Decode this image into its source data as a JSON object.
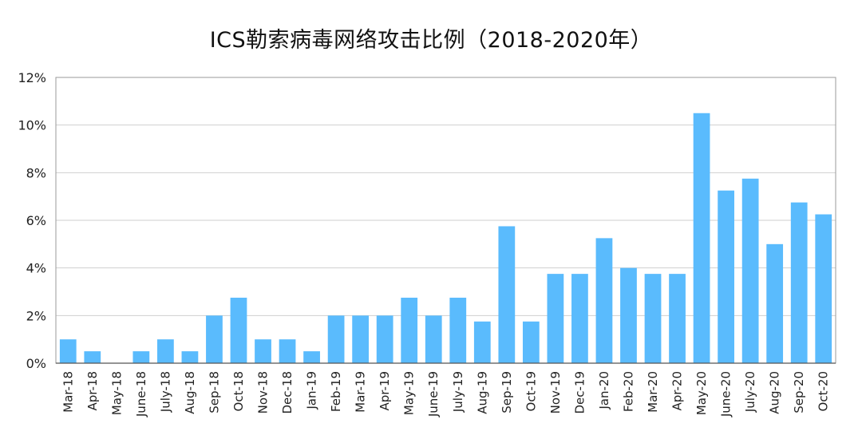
{
  "chart_data": {
    "type": "bar",
    "title": "ICS勒索病毒网络攻击比例（2018-2020年）",
    "xlabel": "",
    "ylabel": "",
    "ylim": [
      0,
      12
    ],
    "yticks": [
      0,
      2,
      4,
      6,
      8,
      10,
      12
    ],
    "ytick_labels": [
      "0%",
      "2%",
      "4%",
      "6%",
      "8%",
      "10%",
      "12%"
    ],
    "grid": true,
    "legend": "none",
    "bar_color": "#5ABBFD",
    "categories": [
      "Mar-18",
      "Apr-18",
      "May-18",
      "June-18",
      "July-18",
      "Aug-18",
      "Sep-18",
      "Oct-18",
      "Nov-18",
      "Dec-18",
      "Jan-19",
      "Feb-19",
      "Mar-19",
      "Apr-19",
      "May-19",
      "June-19",
      "July-19",
      "Aug-19",
      "Sep-19",
      "Oct-19",
      "Nov-19",
      "Dec-19",
      "Jan-20",
      "Feb-20",
      "Mar-20",
      "Apr-20",
      "May-20",
      "June-20",
      "July-20",
      "Aug-20",
      "Sep-20",
      "Oct-20"
    ],
    "values": [
      1.0,
      0.5,
      0.0,
      0.5,
      1.0,
      0.5,
      2.0,
      2.75,
      1.0,
      1.0,
      0.5,
      2.0,
      2.0,
      2.0,
      2.75,
      2.0,
      2.75,
      1.75,
      5.75,
      1.75,
      3.75,
      3.75,
      5.25,
      4.0,
      3.75,
      3.75,
      10.5,
      7.25,
      7.75,
      5.0,
      6.75,
      6.25
    ]
  }
}
